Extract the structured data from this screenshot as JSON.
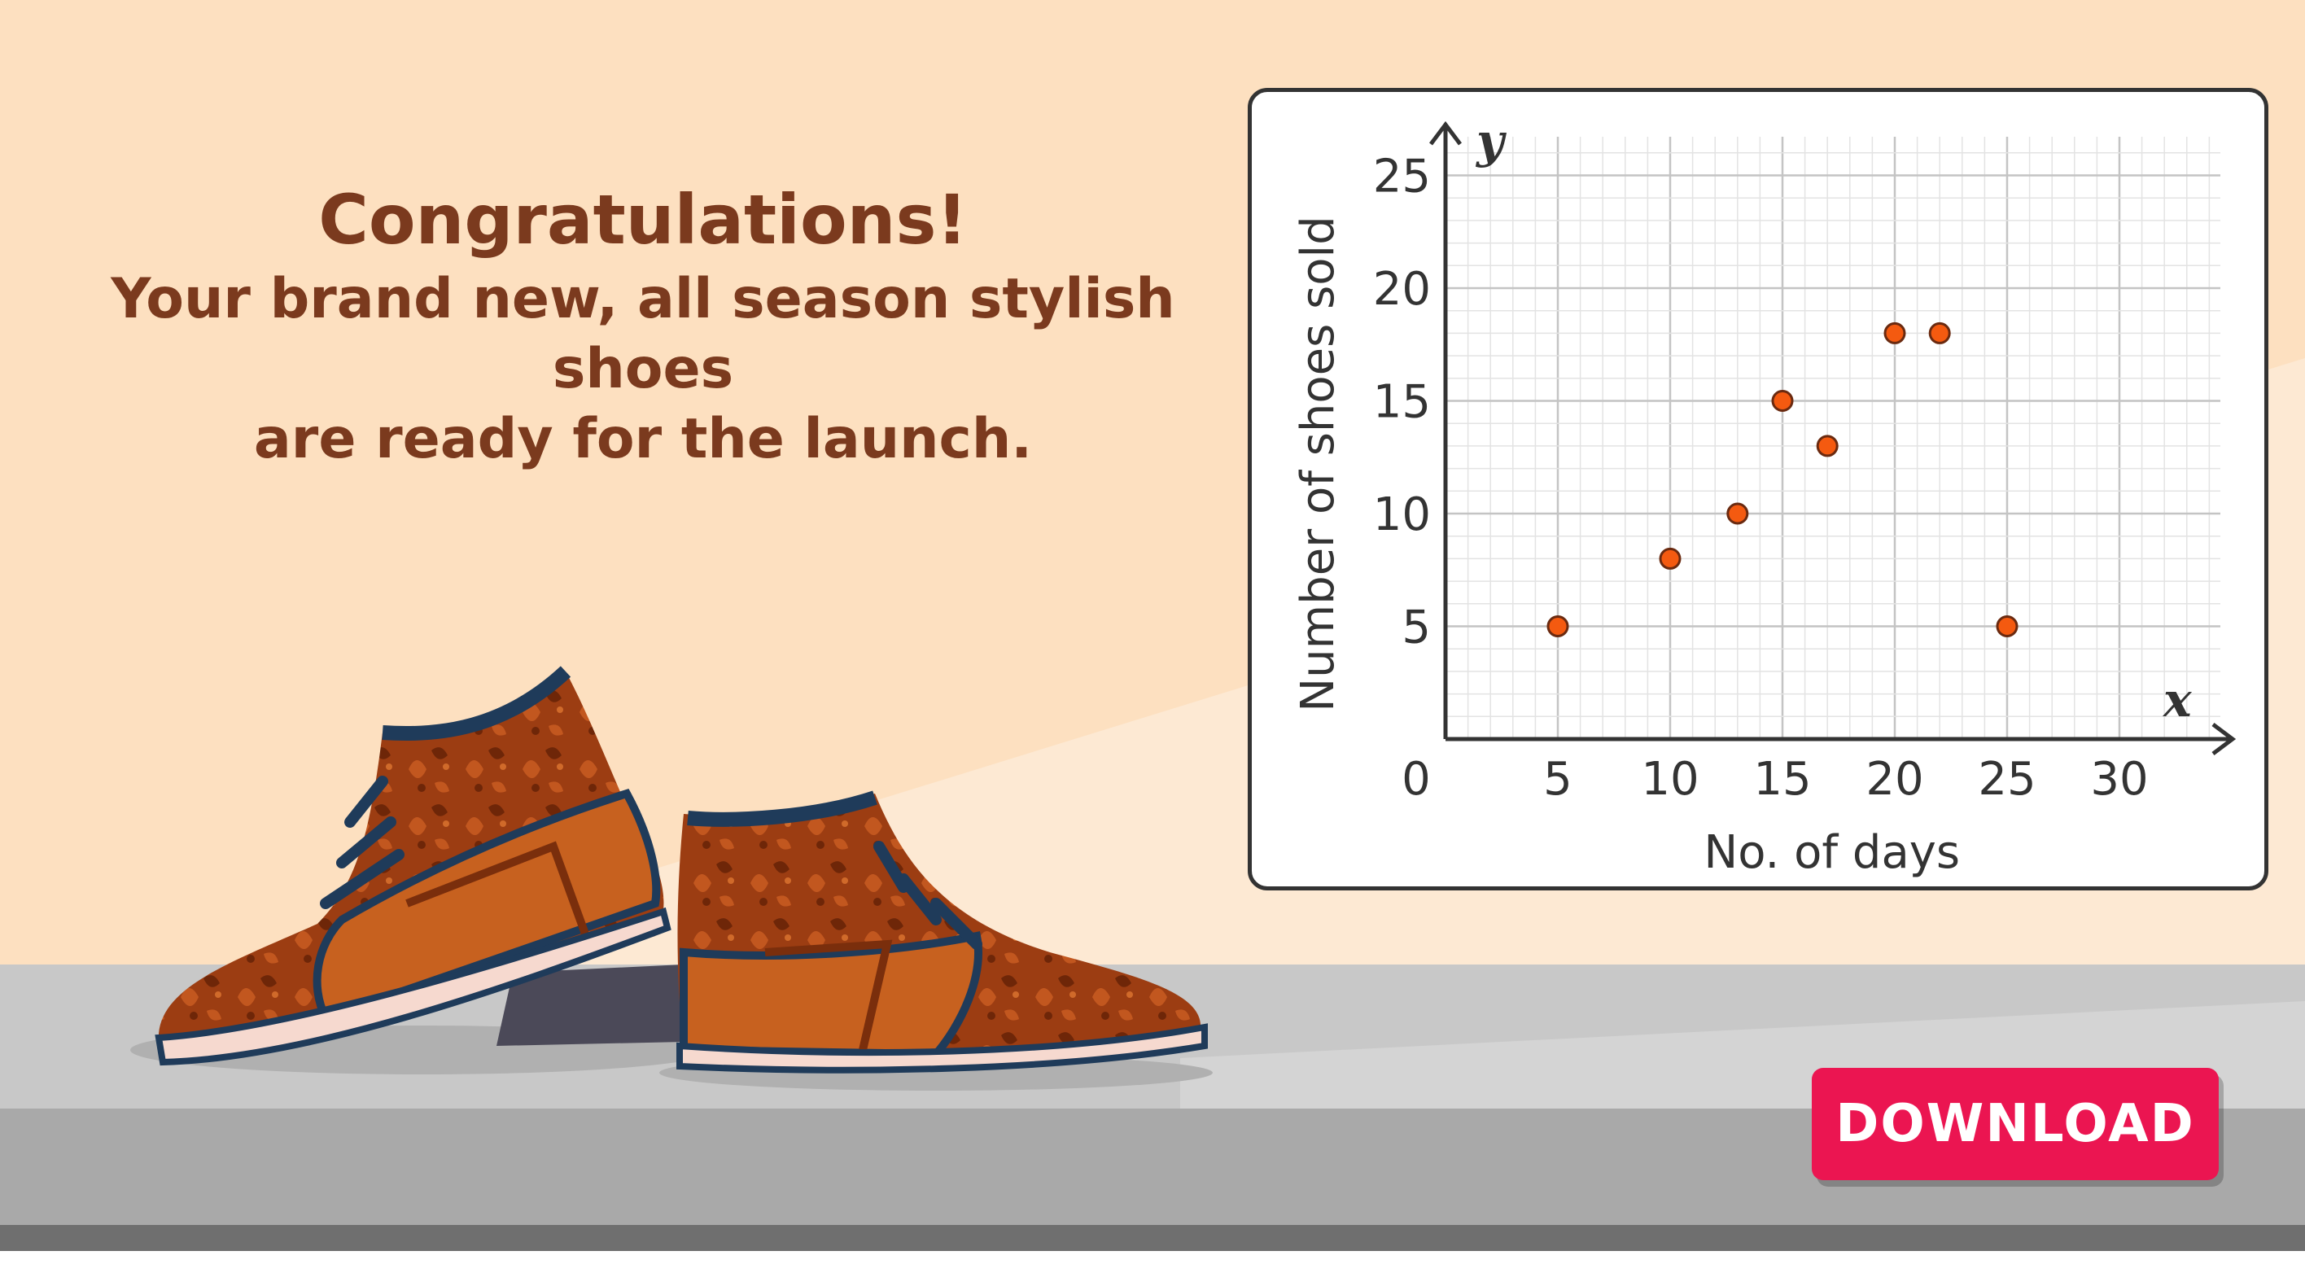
{
  "headline": {
    "title": "Congratulations!",
    "line1": "Your brand new, all season stylish shoes",
    "line2": "are ready for the launch."
  },
  "download_button": {
    "label": "DOWNLOAD"
  },
  "colors": {
    "background": "#fde0c0",
    "headline_text": "#7b3a1e",
    "button": "#eb1551",
    "point_fill": "#f45a10",
    "shelf": "#c8c8c8"
  },
  "chart_data": {
    "type": "scatter",
    "xlabel": "No. of days",
    "ylabel": "Number of shoes sold",
    "x_var": "x",
    "y_var": "y",
    "origin_label": "0",
    "xlim": [
      0,
      34
    ],
    "ylim": [
      0,
      27
    ],
    "xticks": [
      5,
      10,
      15,
      20,
      25,
      30
    ],
    "yticks": [
      5,
      10,
      15,
      20,
      25
    ],
    "grid": true,
    "points": [
      {
        "x": 5,
        "y": 5
      },
      {
        "x": 10,
        "y": 8
      },
      {
        "x": 13,
        "y": 10
      },
      {
        "x": 15,
        "y": 15
      },
      {
        "x": 17,
        "y": 13
      },
      {
        "x": 20,
        "y": 18
      },
      {
        "x": 22,
        "y": 18
      },
      {
        "x": 25,
        "y": 5
      }
    ]
  }
}
